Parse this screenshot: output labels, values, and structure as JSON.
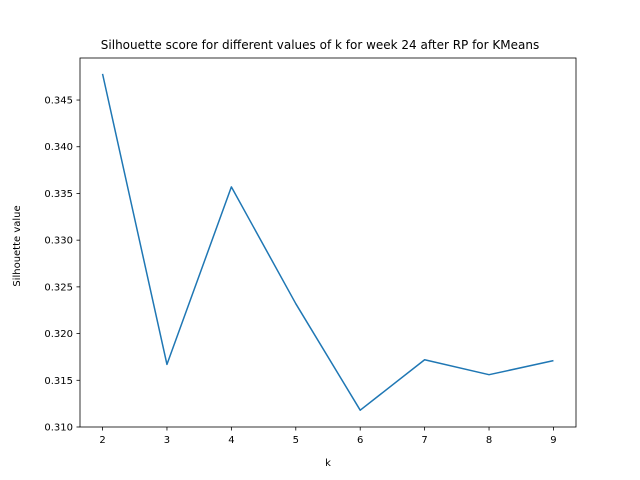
{
  "chart_data": {
    "type": "line",
    "title": "Silhouette score for different values of k for week 24 after RP for KMeans",
    "xlabel": "k",
    "ylabel": "Silhouette value",
    "x": [
      2,
      3,
      4,
      5,
      6,
      7,
      8,
      9
    ],
    "series": [
      {
        "values": [
          0.3478,
          0.3167,
          0.3357,
          0.3232,
          0.3118,
          0.3172,
          0.3156,
          0.3171
        ],
        "color": "#1f77b4"
      }
    ],
    "xlim": [
      1.65,
      9.35
    ],
    "ylim": [
      0.31,
      0.3495
    ],
    "xticks": [
      "2",
      "3",
      "4",
      "5",
      "6",
      "7",
      "8",
      "9"
    ],
    "yticks": [
      "0.310",
      "0.315",
      "0.320",
      "0.325",
      "0.330",
      "0.335",
      "0.340",
      "0.345"
    ],
    "grid": false,
    "legend": "none"
  }
}
